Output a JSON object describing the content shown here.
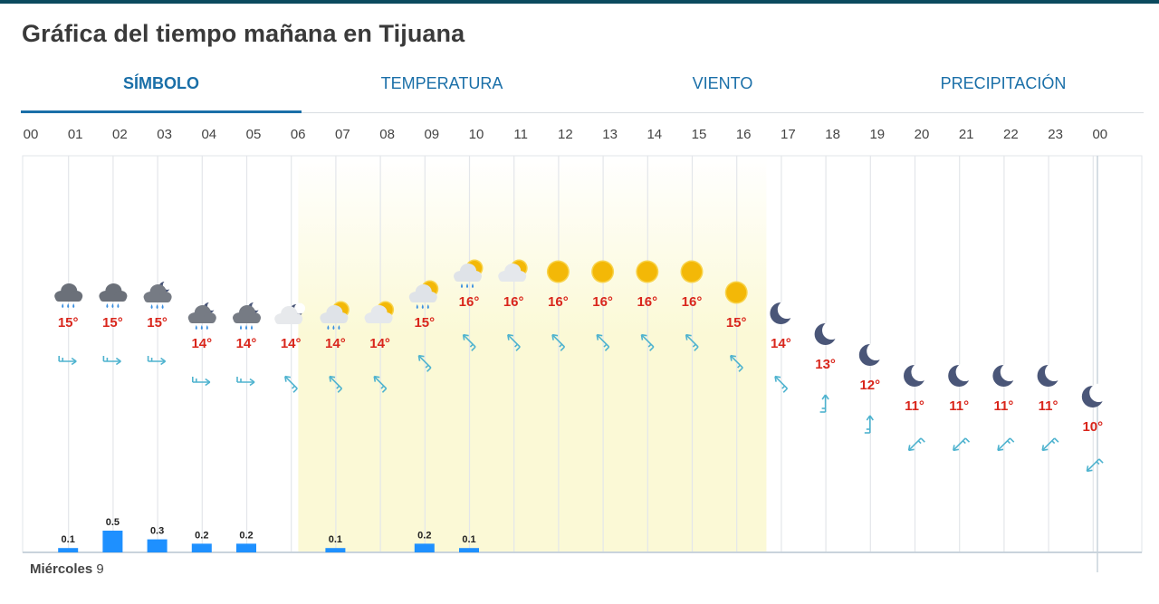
{
  "page": {
    "title": "Gráfica del tiempo mañana en Tijuana"
  },
  "tabs": [
    {
      "label": "SÍMBOLO",
      "active": true
    },
    {
      "label": "TEMPERATURA",
      "active": false
    },
    {
      "label": "VIENTO",
      "active": false
    },
    {
      "label": "PRECIPITACIÓN",
      "active": false
    }
  ],
  "day_label": {
    "weekday": "Miércoles",
    "day": "9"
  },
  "chart_data": {
    "type": "table",
    "hours": [
      "00",
      "01",
      "02",
      "03",
      "04",
      "05",
      "06",
      "07",
      "08",
      "09",
      "10",
      "11",
      "12",
      "13",
      "14",
      "15",
      "16",
      "17",
      "18",
      "19",
      "20",
      "21",
      "22",
      "23",
      "00"
    ],
    "temperature_labels": [
      "15°",
      "15°",
      "15°",
      "14°",
      "14°",
      "14°",
      "14°",
      "14°",
      "15°",
      "16°",
      "16°",
      "16°",
      "16°",
      "16°",
      "16°",
      "15°",
      "14°",
      "13°",
      "12°",
      "11°",
      "11°",
      "11°",
      "11°",
      "10°"
    ],
    "temperature_c": [
      15,
      15,
      15,
      14,
      14,
      14,
      14,
      14,
      15,
      16,
      16,
      16,
      16,
      16,
      16,
      15,
      14,
      13,
      12,
      11,
      11,
      11,
      11,
      10
    ],
    "symbols": [
      "rain-cloud-icon",
      "rain-cloud-icon",
      "rain-cloud-night-icon",
      "rain-cloud-night-icon",
      "rain-cloud-night-icon",
      "cloud-moon-icon",
      "rain-sun-cloud-icon",
      "sun-cloud-icon",
      "rain-sun-cloud-icon",
      "rain-sun-cloud-icon",
      "sun-cloud-icon",
      "sun-icon",
      "sun-icon",
      "sun-icon",
      "sun-icon",
      "sun-icon",
      "moon-icon",
      "moon-icon",
      "moon-icon",
      "moon-icon",
      "moon-icon",
      "moon-icon",
      "moon-icon",
      "moon-icon"
    ],
    "wind_direction_deg": [
      90,
      90,
      90,
      90,
      90,
      315,
      315,
      315,
      315,
      315,
      315,
      315,
      315,
      315,
      315,
      315,
      315,
      0,
      0,
      225,
      225,
      225,
      225,
      225
    ],
    "precipitation_mm": [
      0.1,
      0.5,
      0.3,
      0.2,
      0.2,
      0,
      0.1,
      0,
      0.2,
      0.1,
      0,
      0,
      0,
      0,
      0,
      0,
      0,
      0,
      0,
      0,
      0,
      0,
      0,
      0
    ],
    "precipitation_labels": [
      "0.1",
      "0.5",
      "0.3",
      "0.2",
      "0.2",
      "",
      "0.1",
      "",
      "0.2",
      "0.1",
      "",
      "",
      "",
      "",
      "",
      "",
      "",
      "",
      "",
      "",
      "",
      "",
      "",
      ""
    ],
    "daylight_hours": [
      "07",
      "17"
    ]
  },
  "colors": {
    "accent": "#1a6fa8",
    "temperature_text": "#d9261c",
    "wind_arrow": "#4fb3cf",
    "precip_bar": "#1e90ff",
    "daylight": "#fbf9d6",
    "moon": "#4a5678",
    "sun": "#f3b807"
  }
}
